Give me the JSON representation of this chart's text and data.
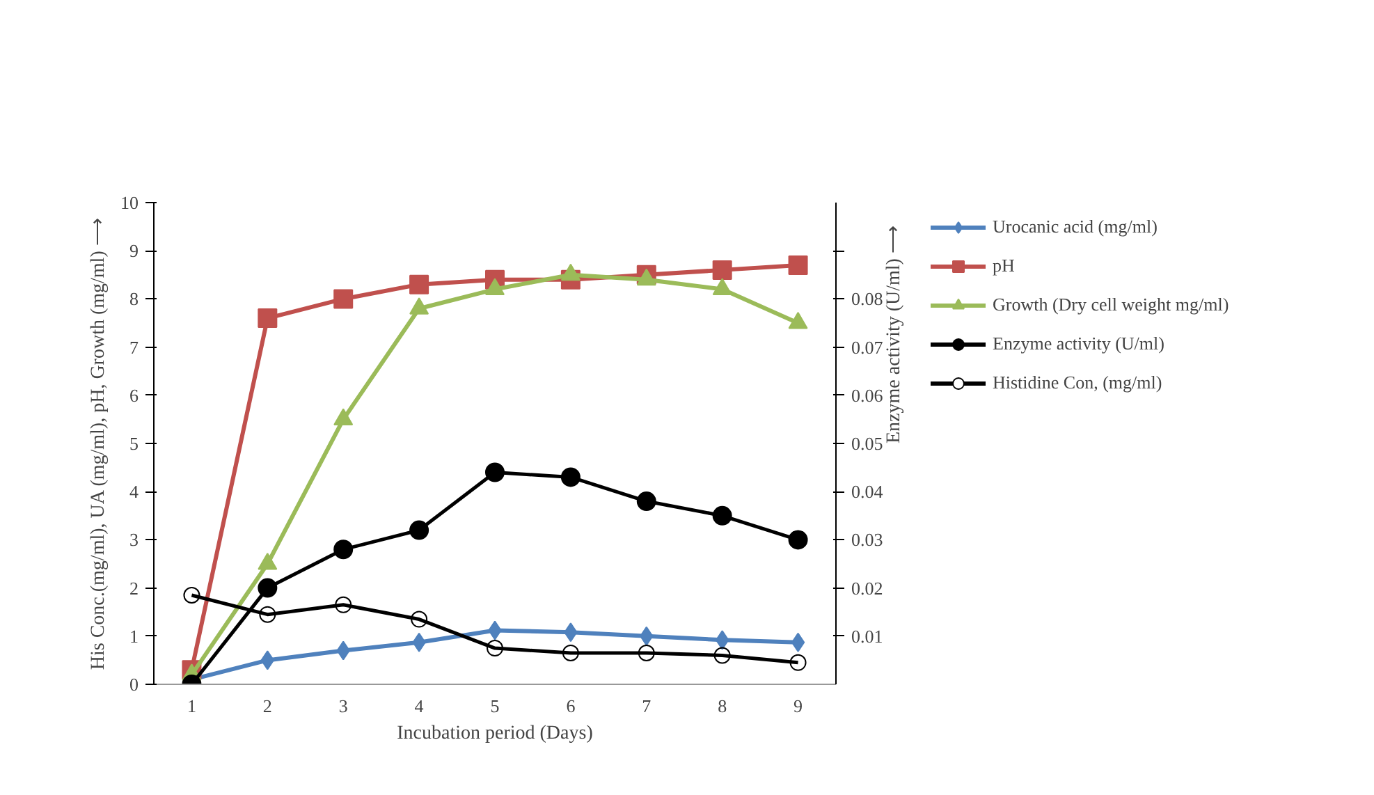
{
  "chart_data": {
    "type": "line",
    "xlabel": "Incubation period (Days)",
    "ylabel": "His Conc.(mg/ml), UA (mg/ml), pH, Growth (mg/ml) ⟶",
    "y2label": "Enzyme activity (U/ml) ⟶",
    "categories": [
      "1",
      "2",
      "3",
      "4",
      "5",
      "6",
      "7",
      "8",
      "9"
    ],
    "ylim": [
      0,
      10
    ],
    "yticks": [
      0,
      1,
      2,
      3,
      4,
      5,
      6,
      7,
      8,
      9,
      10
    ],
    "y2lim": [
      0,
      0.1
    ],
    "y2ticks": [
      {
        "value": 0.01,
        "label": "0.01"
      },
      {
        "value": 0.02,
        "label": "0.02"
      },
      {
        "value": 0.03,
        "label": "0.03"
      },
      {
        "value": 0.04,
        "label": "0.04"
      },
      {
        "value": 0.05,
        "label": "0.05"
      },
      {
        "value": 0.06,
        "label": "0.06"
      },
      {
        "value": 0.07,
        "label": "0.07"
      },
      {
        "value": 0.08,
        "label": "0.08"
      },
      {
        "value": 0.09,
        "label": null
      }
    ],
    "grid": false,
    "legend": "top right",
    "line_style": "solid",
    "series": [
      {
        "name": "Urocanic acid (mg/ml)",
        "color": "#4f81bd",
        "marker": "diamond",
        "values": [
          0.1,
          0.5,
          0.7,
          0.87,
          1.12,
          1.08,
          1.0,
          0.92,
          0.87
        ]
      },
      {
        "name": "pH",
        "color": "#c0504d",
        "marker": "square",
        "values": [
          0.3,
          7.6,
          8.0,
          8.3,
          8.4,
          8.4,
          8.5,
          8.6,
          8.7
        ]
      },
      {
        "name": "Growth (Dry cell weight mg/ml)",
        "color": "#9bbb59",
        "marker": "triangle",
        "values": [
          0.2,
          2.5,
          5.5,
          7.8,
          8.2,
          8.5,
          8.4,
          8.2,
          7.5
        ]
      },
      {
        "name": "Enzyme activity (U/ml)",
        "color": "#000000",
        "marker": "circle",
        "axis": "y2",
        "values": [
          0,
          0.02,
          0.028,
          0.032,
          0.044,
          0.043,
          0.038,
          0.035,
          0.03
        ]
      },
      {
        "name": "Histidine Con, (mg/ml)",
        "color": "#000000",
        "marker": "open_circle",
        "values": [
          1.85,
          1.45,
          1.65,
          1.35,
          0.75,
          0.65,
          0.65,
          0.6,
          0.45
        ]
      }
    ]
  }
}
